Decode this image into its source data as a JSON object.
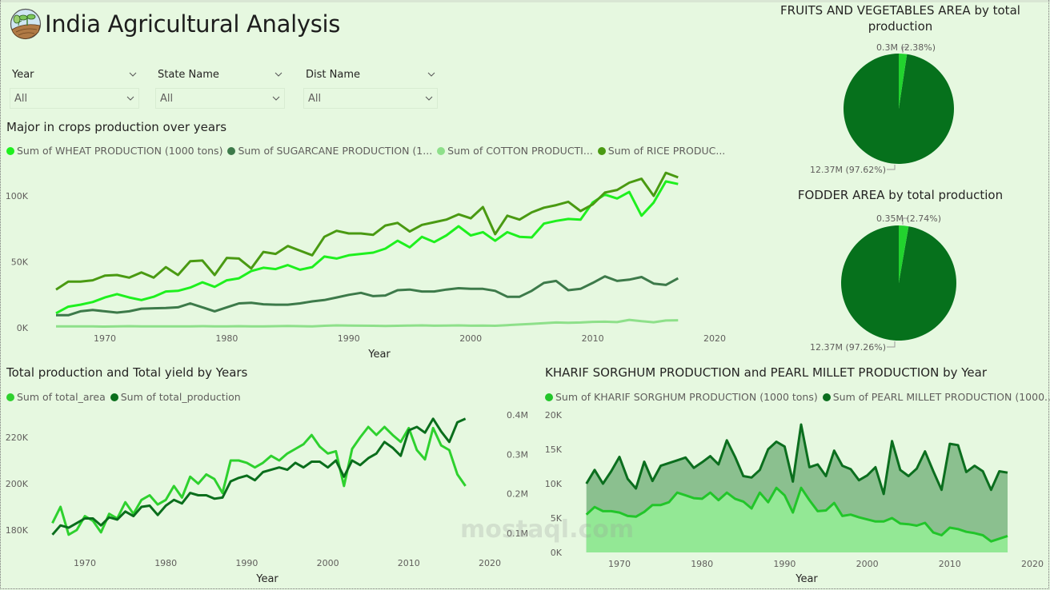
{
  "header": {
    "title": "India Agricultural Analysis",
    "logo_icon": "sprout-field-icon"
  },
  "slicers": [
    {
      "label": "Year",
      "value": "All"
    },
    {
      "label": "State Name",
      "value": "All"
    },
    {
      "label": "Dist Name",
      "value": "All"
    }
  ],
  "colors": {
    "background": "#e6f8e0",
    "wheat": "#1ef01e",
    "sugarcane": "#3d7a4a",
    "cotton": "#8ee08a",
    "rice": "#4a9a12",
    "area": "#2ed12e",
    "production": "#0a6e1c",
    "pie_major": "#06711c",
    "pie_minor": "#22d32e",
    "sorghum": "#22c52a",
    "millet": "#0b6e1e"
  },
  "chart_data": [
    {
      "id": "crops",
      "type": "line",
      "title": "Major in crops production over years",
      "xlabel": "Year",
      "ylabel": "",
      "x_ticks": [
        "1970",
        "1980",
        "1990",
        "2000",
        "2010",
        "2020"
      ],
      "y_ticks": [
        "0K",
        "50K",
        "100K"
      ],
      "xlim": [
        1966,
        2020
      ],
      "ylim": [
        0,
        120000
      ],
      "legend_position": "top-left",
      "x": [
        1966,
        1967,
        1968,
        1969,
        1970,
        1971,
        1972,
        1973,
        1974,
        1975,
        1976,
        1977,
        1978,
        1979,
        1980,
        1981,
        1982,
        1983,
        1984,
        1985,
        1986,
        1987,
        1988,
        1989,
        1990,
        1991,
        1992,
        1993,
        1994,
        1995,
        1996,
        1997,
        1998,
        1999,
        2000,
        2001,
        2002,
        2003,
        2004,
        2005,
        2006,
        2007,
        2008,
        2009,
        2010,
        2011,
        2012,
        2013,
        2014,
        2015,
        2016,
        2017
      ],
      "series": [
        {
          "name": "Sum of WHEAT PRODUCTION (1000 tons)",
          "legend_label": "Sum of WHEAT PRODUCTION (1000 tons)",
          "color_key": "wheat",
          "values": [
            11000,
            16000,
            17500,
            19500,
            23000,
            25500,
            23000,
            21000,
            23500,
            27500,
            28000,
            30500,
            34500,
            31000,
            36000,
            37500,
            43000,
            45500,
            44500,
            47500,
            44000,
            46000,
            54000,
            52500,
            55000,
            56000,
            57000,
            60000,
            66000,
            61000,
            69000,
            65000,
            70000,
            77000,
            70000,
            72500,
            66000,
            72500,
            69000,
            68500,
            79000,
            81000,
            82500,
            82000,
            95000,
            101000,
            98000,
            103000,
            85000,
            95000,
            111000,
            109000
          ]
        },
        {
          "name": "Sum of SUGARCANE PRODUCTION (1000 tons)",
          "legend_label": "Sum of SUGARCANE PRODUCTION (1...",
          "color_key": "sugarcane",
          "values": [
            9500,
            9500,
            12500,
            13500,
            12500,
            11500,
            12500,
            14500,
            14800,
            15000,
            15500,
            18500,
            15500,
            12500,
            15500,
            18500,
            19000,
            17800,
            17500,
            17500,
            18500,
            20000,
            21000,
            23000,
            25000,
            26500,
            24000,
            24500,
            28500,
            29000,
            27500,
            27500,
            29000,
            30000,
            29500,
            29500,
            28000,
            23500,
            23500,
            28000,
            34000,
            35500,
            28500,
            29500,
            34000,
            39000,
            35500,
            36500,
            38500,
            33500,
            32500,
            37500
          ]
        },
        {
          "name": "Sum of COTTON PRODUCTION (1000 tons)",
          "legend_label": "Sum of COTTON PRODUCTI...",
          "color_key": "cotton",
          "values": [
            1000,
            1000,
            1100,
            1000,
            900,
            1100,
            1200,
            1000,
            1100,
            1000,
            1100,
            1100,
            1200,
            1000,
            1100,
            1200,
            1100,
            1100,
            1200,
            1400,
            1200,
            1100,
            1500,
            1800,
            1700,
            1600,
            1500,
            1400,
            1500,
            1700,
            1800,
            1600,
            1700,
            1800,
            1600,
            1700,
            1500,
            2000,
            2500,
            3000,
            3500,
            4000,
            3800,
            4000,
            4500,
            4600,
            4300,
            6000,
            5000,
            4200,
            5500,
            5700
          ]
        },
        {
          "name": "Sum of RICE PRODUCTION (1000 tons)",
          "legend_label": "Sum of RICE PRODUC...",
          "color_key": "rice",
          "values": [
            29000,
            35000,
            35000,
            36000,
            39500,
            40000,
            38000,
            42000,
            38000,
            46000,
            40000,
            50500,
            51000,
            40000,
            53000,
            52500,
            45000,
            57500,
            56000,
            62000,
            58500,
            55000,
            69000,
            73500,
            71500,
            71500,
            70500,
            77500,
            79500,
            73000,
            78000,
            80000,
            82000,
            86000,
            83000,
            91500,
            71000,
            85000,
            82000,
            87500,
            91000,
            93000,
            95500,
            88500,
            93500,
            102500,
            104500,
            110000,
            113000,
            100000,
            117500,
            114000
          ]
        }
      ]
    },
    {
      "id": "total",
      "type": "line",
      "title": "Total production and Total yield by Years",
      "xlabel": "Year",
      "x_ticks": [
        "1970",
        "1980",
        "1990",
        "2000",
        "2010",
        "2020"
      ],
      "y_ticks_left": [
        "180K",
        "200K",
        "220K"
      ],
      "y_ticks_right": [
        "0.1M",
        "0.2M",
        "0.3M",
        "0.4M"
      ],
      "xlim": [
        1966,
        2020
      ],
      "ylim_left": [
        170000,
        230000
      ],
      "ylim_right": [
        0,
        400000
      ],
      "legend_position": "top-left",
      "x": [
        1966,
        1967,
        1968,
        1969,
        1970,
        1971,
        1972,
        1973,
        1974,
        1975,
        1976,
        1977,
        1978,
        1979,
        1980,
        1981,
        1982,
        1983,
        1984,
        1985,
        1986,
        1987,
        1988,
        1989,
        1990,
        1991,
        1992,
        1993,
        1994,
        1995,
        1996,
        1997,
        1998,
        1999,
        2000,
        2001,
        2002,
        2003,
        2004,
        2005,
        2006,
        2007,
        2008,
        2009,
        2010,
        2011,
        2012,
        2013,
        2014,
        2015,
        2016,
        2017
      ],
      "series": [
        {
          "name": "Sum of total_area",
          "axis": "left",
          "color_key": "area",
          "values": [
            183000,
            190000,
            178000,
            180000,
            186000,
            184000,
            179000,
            187000,
            185000,
            192000,
            187000,
            193000,
            195000,
            191000,
            193000,
            199000,
            194000,
            203000,
            200000,
            204000,
            202000,
            196000,
            210000,
            210000,
            209000,
            207000,
            209000,
            212000,
            210000,
            213000,
            215000,
            217000,
            221000,
            216000,
            213000,
            214000,
            199000,
            215000,
            220000,
            224500,
            221000,
            224500,
            221000,
            218000,
            224000,
            214500,
            210500,
            224000,
            216500,
            214500,
            204000,
            199000
          ]
        },
        {
          "name": "Sum of total_production",
          "axis": "right",
          "color_key": "production",
          "values": [
            178000,
            182000,
            181000,
            183000,
            185000,
            185000,
            182000,
            185500,
            184500,
            188000,
            186000,
            190000,
            190500,
            186500,
            190500,
            193000,
            191500,
            196000,
            195000,
            195000,
            193500,
            194000,
            201000,
            202500,
            203500,
            201500,
            205000,
            206000,
            207000,
            206000,
            209000,
            207000,
            209500,
            209500,
            207000,
            210000,
            203000,
            210000,
            208000,
            211000,
            213000,
            218000,
            215500,
            212000,
            223000,
            224500,
            222000,
            228000,
            222500,
            218000,
            226500,
            228000
          ]
        }
      ]
    },
    {
      "id": "pie-fruits",
      "type": "pie",
      "title": "FRUITS AND VEGETABLES AREA by total production",
      "slices": [
        {
          "label": "0.3M (2.38%)",
          "value": 0.3,
          "percent": 2.38,
          "color_key": "pie_minor"
        },
        {
          "label": "12.37M (97.62%)",
          "value": 12.37,
          "percent": 97.62,
          "color_key": "pie_major"
        }
      ]
    },
    {
      "id": "pie-fodder",
      "type": "pie",
      "title": "FODDER AREA by total production",
      "slices": [
        {
          "label": "0.35M (2.74%)",
          "value": 0.35,
          "percent": 2.74,
          "color_key": "pie_minor"
        },
        {
          "label": "12.37M (97.26%)",
          "value": 12.37,
          "percent": 97.26,
          "color_key": "pie_major"
        }
      ]
    },
    {
      "id": "sorghum",
      "type": "area",
      "title": "KHARIF SORGHUM PRODUCTION and PEARL MILLET PRODUCTION by Year",
      "xlabel": "Year",
      "x_ticks": [
        "1970",
        "1980",
        "1990",
        "2000",
        "2010",
        "2020"
      ],
      "y_ticks": [
        "0K",
        "5K",
        "10K",
        "15K",
        "20K"
      ],
      "xlim": [
        1966,
        2020
      ],
      "ylim": [
        0,
        20000
      ],
      "legend_position": "top-left",
      "x": [
        1966,
        1967,
        1968,
        1969,
        1970,
        1971,
        1972,
        1973,
        1974,
        1975,
        1976,
        1977,
        1978,
        1979,
        1980,
        1981,
        1982,
        1983,
        1984,
        1985,
        1986,
        1987,
        1988,
        1989,
        1990,
        1991,
        1992,
        1993,
        1994,
        1995,
        1996,
        1997,
        1998,
        1999,
        2000,
        2001,
        2002,
        2003,
        2004,
        2005,
        2006,
        2007,
        2008,
        2009,
        2010,
        2011,
        2012,
        2013,
        2014,
        2015,
        2016,
        2017
      ],
      "series": [
        {
          "name": "Sum of KHARIF SORGHUM PRODUCTION (1000 tons)",
          "legend_label": "Sum of KHARIF SORGHUM PRODUCTION (1000 tons)",
          "color_key": "sorghum",
          "values": [
            5500,
            6600,
            6000,
            6000,
            5800,
            5300,
            5200,
            5900,
            6900,
            6900,
            7300,
            8700,
            8300,
            7900,
            7800,
            8700,
            7600,
            8700,
            7800,
            7400,
            6400,
            8700,
            7300,
            9400,
            8300,
            5800,
            9400,
            7600,
            6000,
            6100,
            7200,
            5300,
            5500,
            5100,
            4800,
            4500,
            4500,
            5000,
            4200,
            4100,
            3900,
            4300,
            2900,
            2500,
            3600,
            3400,
            3000,
            2800,
            2500,
            1600,
            2000,
            2400
          ]
        },
        {
          "name": "Sum of PEARL MILLET PRODUCTION (1000 tons)",
          "legend_label": "Sum of PEARL MILLET PRODUCTION (1000...",
          "color_key": "millet",
          "values": [
            10000,
            12000,
            10000,
            11800,
            13900,
            10700,
            9300,
            13200,
            10400,
            12600,
            13000,
            13400,
            13800,
            12300,
            13100,
            14000,
            12800,
            16300,
            13900,
            11100,
            10900,
            12000,
            15000,
            16100,
            15400,
            10300,
            18600,
            12400,
            12800,
            11100,
            14800,
            12600,
            12100,
            10500,
            11200,
            12400,
            8500,
            16200,
            12000,
            11100,
            12200,
            14700,
            11800,
            9100,
            15800,
            15600,
            11700,
            12600,
            11800,
            9100,
            11800,
            11600
          ]
        }
      ]
    }
  ]
}
